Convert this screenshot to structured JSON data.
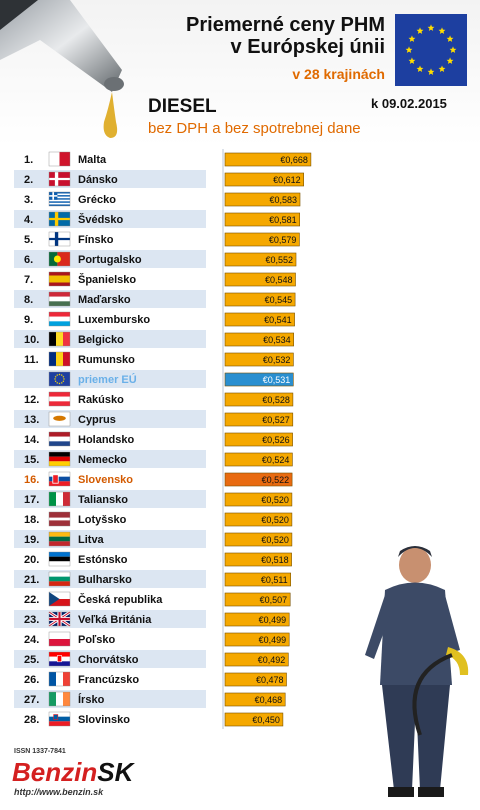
{
  "header": {
    "title_line1": "Priemerné ceny PHM",
    "title_line2": "v Európskej únii",
    "subtitle": "v 28 krajinách",
    "fuel": "DIESEL",
    "date": "k 09.02.2015",
    "tax_note": "bez DPH a bez spotrebnej dane"
  },
  "footer": {
    "issn": "ISSN 1337-7841",
    "brand_part1": "Benzin",
    "brand_part2": "SK",
    "url": "http://www.benzin.sk"
  },
  "colors": {
    "bar": "#f5a800",
    "bar_eu": "#2a8fd0",
    "bar_sk": "#e86a10",
    "row_stripe": "#dce6f2",
    "text_sk": "#d35a00",
    "text_eu": "#6ab0e8"
  },
  "chart_data": {
    "type": "bar",
    "orientation": "horizontal",
    "value_prefix": "€",
    "decimal_separator": ",",
    "xlim": [
      0,
      0.7
    ],
    "rows": [
      {
        "rank": "1.",
        "country": "Malta",
        "value": 0.668,
        "flag": "malta-flag"
      },
      {
        "rank": "2.",
        "country": "Dánsko",
        "value": 0.612,
        "flag": "denmark-flag"
      },
      {
        "rank": "3.",
        "country": "Grécko",
        "value": 0.583,
        "flag": "greece-flag"
      },
      {
        "rank": "4.",
        "country": "Švédsko",
        "value": 0.581,
        "flag": "sweden-flag"
      },
      {
        "rank": "5.",
        "country": "Fínsko",
        "value": 0.579,
        "flag": "finland-flag"
      },
      {
        "rank": "6.",
        "country": "Portugalsko",
        "value": 0.552,
        "flag": "portugal-flag"
      },
      {
        "rank": "7.",
        "country": "Španielsko",
        "value": 0.548,
        "flag": "spain-flag"
      },
      {
        "rank": "8.",
        "country": "Maďarsko",
        "value": 0.545,
        "flag": "hungary-flag"
      },
      {
        "rank": "9.",
        "country": "Luxembursko",
        "value": 0.541,
        "flag": "luxembourg-flag"
      },
      {
        "rank": "10.",
        "country": "Belgicko",
        "value": 0.534,
        "flag": "belgium-flag"
      },
      {
        "rank": "11.",
        "country": "Rumunsko",
        "value": 0.532,
        "flag": "romania-flag"
      },
      {
        "rank": "",
        "country": "priemer EÚ",
        "value": 0.531,
        "flag": "eu-flag",
        "highlight": "eu"
      },
      {
        "rank": "12.",
        "country": "Rakúsko",
        "value": 0.528,
        "flag": "austria-flag"
      },
      {
        "rank": "13.",
        "country": "Cyprus",
        "value": 0.527,
        "flag": "cyprus-flag"
      },
      {
        "rank": "14.",
        "country": "Holandsko",
        "value": 0.526,
        "flag": "netherlands-flag"
      },
      {
        "rank": "15.",
        "country": "Nemecko",
        "value": 0.524,
        "flag": "germany-flag"
      },
      {
        "rank": "16.",
        "country": "Slovensko",
        "value": 0.522,
        "flag": "slovakia-flag",
        "highlight": "sk"
      },
      {
        "rank": "17.",
        "country": "Taliansko",
        "value": 0.52,
        "flag": "italy-flag"
      },
      {
        "rank": "18.",
        "country": "Lotyšsko",
        "value": 0.52,
        "flag": "latvia-flag"
      },
      {
        "rank": "19.",
        "country": "Litva",
        "value": 0.52,
        "flag": "lithuania-flag"
      },
      {
        "rank": "20.",
        "country": "Estónsko",
        "value": 0.518,
        "flag": "estonia-flag"
      },
      {
        "rank": "21.",
        "country": "Bulharsko",
        "value": 0.511,
        "flag": "bulgaria-flag"
      },
      {
        "rank": "22.",
        "country": "Česká republika",
        "value": 0.507,
        "flag": "czech-flag"
      },
      {
        "rank": "23.",
        "country": "Veľká Británia",
        "value": 0.499,
        "flag": "uk-flag"
      },
      {
        "rank": "24.",
        "country": "Poľsko",
        "value": 0.499,
        "flag": "poland-flag"
      },
      {
        "rank": "25.",
        "country": "Chorvátsko",
        "value": 0.492,
        "flag": "croatia-flag"
      },
      {
        "rank": "26.",
        "country": "Francúzsko",
        "value": 0.478,
        "flag": "france-flag"
      },
      {
        "rank": "27.",
        "country": "Írsko",
        "value": 0.468,
        "flag": "ireland-flag"
      },
      {
        "rank": "28.",
        "country": "Slovinsko",
        "value": 0.45,
        "flag": "slovenia-flag"
      }
    ]
  }
}
